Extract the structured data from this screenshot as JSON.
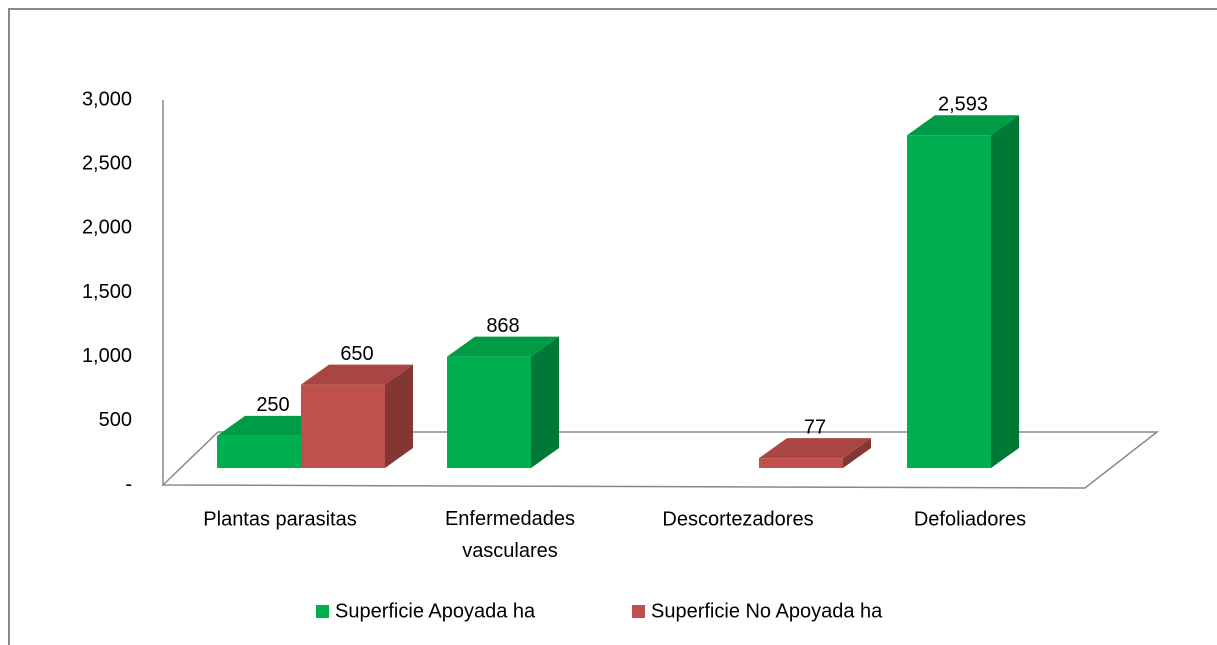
{
  "chart_data": {
    "type": "bar3d",
    "categories": [
      "Plantas parasitas",
      "Enfermedades vasculares",
      "Descortezadores",
      "Defoliadores"
    ],
    "series": [
      {
        "name": "Superficie Apoyada ha",
        "color": "#00b050",
        "values": [
          250,
          868,
          null,
          2593
        ],
        "value_labels": [
          "250",
          "868",
          null,
          "2,593"
        ]
      },
      {
        "name": "Superficie No Apoyada ha",
        "color": "#c0504d",
        "values": [
          650,
          null,
          77,
          null
        ],
        "value_labels": [
          "650",
          null,
          "77",
          null
        ]
      }
    ],
    "ylim": [
      0,
      3000
    ],
    "yticks": [
      {
        "value": 0,
        "label": "-"
      },
      500,
      {
        "value": 1000,
        "label": "1,000"
      },
      {
        "value": 1500,
        "label": "1,500"
      },
      {
        "value": 2000,
        "label": "2,000"
      },
      {
        "value": 2500,
        "label": "2,500"
      },
      {
        "value": 3000,
        "label": "3,000"
      }
    ],
    "legend": "bottom"
  }
}
